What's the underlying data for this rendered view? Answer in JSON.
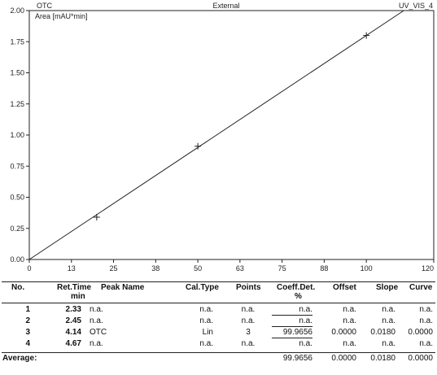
{
  "header": {
    "left": "OTC",
    "center": "External",
    "right": "UV_VIS_4"
  },
  "chart_data": {
    "type": "scatter",
    "ylabel": "Area [mAU*min]",
    "xlabel": "",
    "xlim": [
      0,
      120
    ],
    "ylim": [
      0,
      2.0
    ],
    "x_ticks": [
      "0",
      "13",
      "25",
      "38",
      "50",
      "63",
      "75",
      "88",
      "100",
      "120"
    ],
    "x_tick_values": [
      0,
      12.5,
      25,
      37.5,
      50,
      62.5,
      75,
      87.5,
      100,
      120
    ],
    "y_ticks": [
      "0.00",
      "0.25",
      "0.50",
      "0.75",
      "1.00",
      "1.25",
      "1.50",
      "1.75",
      "2.00"
    ],
    "y_tick_values": [
      0,
      0.25,
      0.5,
      0.75,
      1.0,
      1.25,
      1.5,
      1.75,
      2.0
    ],
    "points": [
      {
        "x": 20,
        "y": 0.34
      },
      {
        "x": 50,
        "y": 0.91
      },
      {
        "x": 100,
        "y": 1.8
      }
    ],
    "fit": {
      "slope": 0.018,
      "offset": 0.0
    }
  },
  "table": {
    "headers": {
      "no": "No.",
      "ret_time": "Ret.Time",
      "ret_time_unit": "min",
      "peak_name": "Peak Name",
      "cal_type": "Cal.Type",
      "points": "Points",
      "coeff": "Coeff.Det.",
      "coeff_unit": "%",
      "offset": "Offset",
      "slope": "Slope",
      "curve": "Curve"
    },
    "rows": [
      [
        "1",
        "2.33",
        "n.a.",
        "n.a.",
        "n.a.",
        "n.a.",
        "n.a.",
        "n.a.",
        "n.a."
      ],
      [
        "2",
        "2.45",
        "n.a.",
        "n.a.",
        "n.a.",
        "n.a.",
        "n.a.",
        "n.a.",
        "n.a."
      ],
      [
        "3",
        "4.14",
        "OTC",
        "Lin",
        "3",
        "99.9656",
        "0.0000",
        "0.0180",
        "0.0000"
      ],
      [
        "4",
        "4.67",
        "n.a.",
        "n.a.",
        "n.a.",
        "n.a.",
        "n.a.",
        "n.a.",
        "n.a."
      ]
    ],
    "average": {
      "label": "Average:",
      "coeff": "99.9656",
      "offset": "0.0000",
      "slope": "0.0180",
      "curve": "0.0000"
    }
  }
}
